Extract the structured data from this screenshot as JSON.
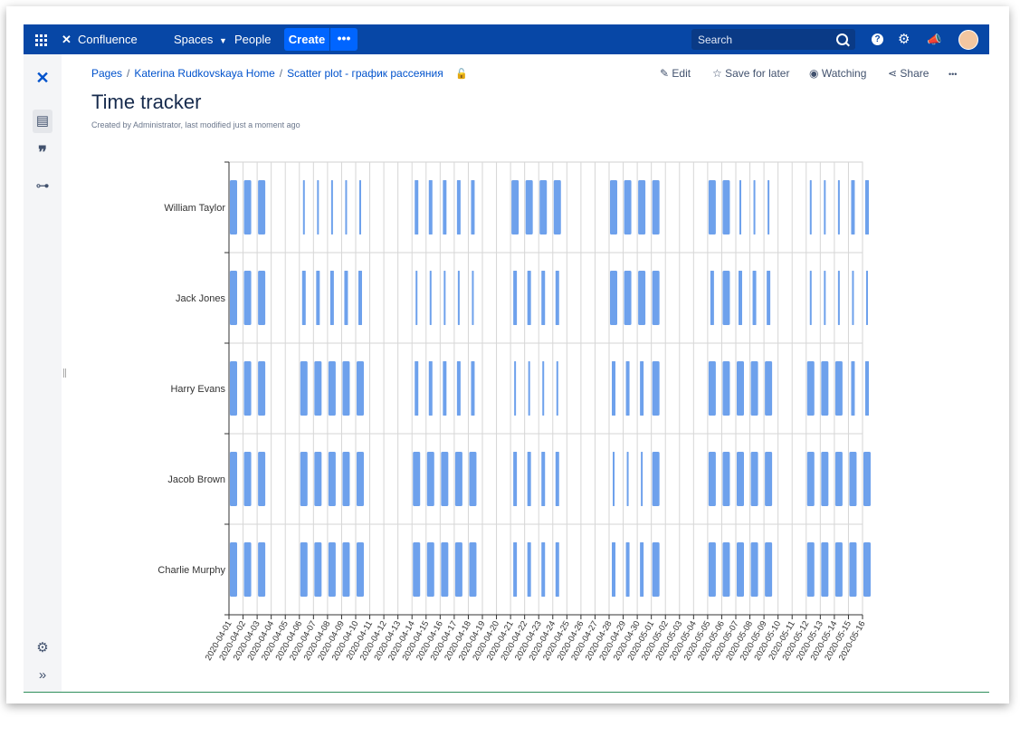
{
  "topnav": {
    "logo_text": "Confluence",
    "spaces_label": "Spaces",
    "people_label": "People",
    "create_label": "Create",
    "more_label": "•••",
    "search_placeholder": "Search",
    "help_icon": "help-icon",
    "settings_icon": "gear-icon",
    "notifications_icon": "megaphone-icon",
    "brand_color": "#0747a6",
    "create_color": "#0065ff"
  },
  "breadcrumb": {
    "items": [
      "Pages",
      "Katerina Rudkovskaya Home",
      "Scatter plot - график рассеяния"
    ]
  },
  "page_actions": {
    "edit": "Edit",
    "save_for_later": "Save for later",
    "watching": "Watching",
    "share": "Share",
    "more": "•••"
  },
  "page": {
    "title": "Time tracker",
    "byline": "Created by Administrator, last modified just a moment ago"
  },
  "chart_data": {
    "type": "scatter",
    "marker": "vertical-bar",
    "marker_color": "#6ea1ec",
    "grid": true,
    "y_categories": [
      "William Taylor",
      "Jack Jones",
      "Harry Evans",
      "Jacob Brown",
      "Charlie Murphy"
    ],
    "x": [
      "2020-04-01",
      "2020-04-02",
      "2020-04-03",
      "2020-04-04",
      "2020-04-05",
      "2020-04-06",
      "2020-04-07",
      "2020-04-08",
      "2020-04-09",
      "2020-04-10",
      "2020-04-11",
      "2020-04-12",
      "2020-04-13",
      "2020-04-14",
      "2020-04-15",
      "2020-04-16",
      "2020-04-17",
      "2020-04-18",
      "2020-04-19",
      "2020-04-20",
      "2020-04-21",
      "2020-04-22",
      "2020-04-23",
      "2020-04-24",
      "2020-04-25",
      "2020-04-26",
      "2020-04-27",
      "2020-04-28",
      "2020-04-29",
      "2020-04-30",
      "2020-05-01",
      "2020-05-02",
      "2020-05-03",
      "2020-05-04",
      "2020-05-05",
      "2020-05-06",
      "2020-05-07",
      "2020-05-08",
      "2020-05-09",
      "2020-05-10",
      "2020-05-11",
      "2020-05-12",
      "2020-05-13",
      "2020-05-14",
      "2020-05-15",
      "2020-05-16"
    ],
    "series": [
      {
        "values": [
          3,
          3,
          3,
          0,
          0,
          1,
          1,
          1,
          1,
          1,
          0,
          0,
          0,
          2,
          2,
          2,
          2,
          2,
          0,
          0,
          3,
          3,
          3,
          3,
          0,
          0,
          0,
          3,
          3,
          3,
          3,
          0,
          0,
          0,
          3,
          3,
          1,
          1,
          1,
          0,
          0,
          1,
          1,
          1,
          2,
          2
        ]
      },
      {
        "values": [
          3,
          3,
          3,
          0,
          0,
          2,
          2,
          2,
          2,
          2,
          0,
          0,
          0,
          1,
          1,
          1,
          1,
          1,
          0,
          0,
          2,
          2,
          2,
          2,
          0,
          0,
          0,
          3,
          3,
          3,
          3,
          0,
          0,
          0,
          2,
          3,
          2,
          2,
          2,
          0,
          0,
          1,
          1,
          1,
          1,
          1
        ]
      },
      {
        "values": [
          3,
          3,
          3,
          0,
          0,
          3,
          3,
          3,
          3,
          3,
          0,
          0,
          0,
          2,
          2,
          2,
          2,
          2,
          0,
          0,
          1,
          1,
          1,
          1,
          0,
          0,
          0,
          2,
          2,
          2,
          3,
          0,
          0,
          0,
          3,
          3,
          3,
          3,
          3,
          0,
          0,
          3,
          3,
          3,
          2,
          2
        ]
      },
      {
        "values": [
          3,
          3,
          3,
          0,
          0,
          3,
          3,
          3,
          3,
          3,
          0,
          0,
          0,
          3,
          3,
          3,
          3,
          3,
          0,
          0,
          2,
          2,
          2,
          2,
          0,
          0,
          0,
          1,
          1,
          1,
          3,
          0,
          0,
          0,
          3,
          3,
          3,
          3,
          3,
          0,
          0,
          3,
          3,
          3,
          3,
          3
        ]
      },
      {
        "values": [
          3,
          3,
          3,
          0,
          0,
          3,
          3,
          3,
          3,
          3,
          0,
          0,
          0,
          3,
          3,
          3,
          3,
          3,
          0,
          0,
          2,
          2,
          2,
          2,
          0,
          0,
          0,
          2,
          2,
          2,
          3,
          0,
          0,
          0,
          3,
          3,
          3,
          3,
          3,
          0,
          0,
          3,
          3,
          3,
          3,
          3
        ]
      }
    ]
  }
}
